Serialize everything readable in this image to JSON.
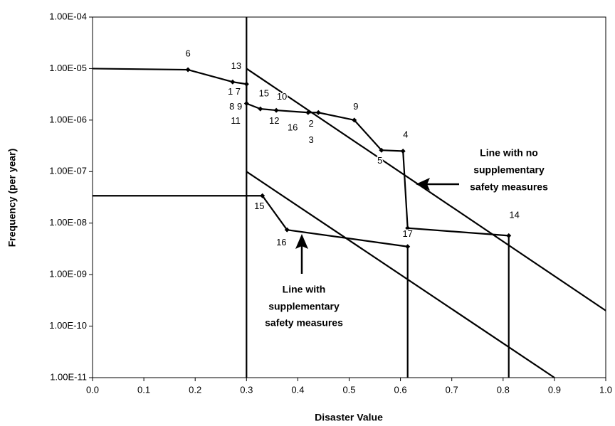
{
  "chart_data": {
    "type": "line",
    "log_y": true,
    "xlabel": "Disaster Value",
    "ylabel": "Frequency (per year)",
    "xlim": [
      0,
      1
    ],
    "ylim": [
      1e-11,
      0.0001
    ],
    "xticks": [
      {
        "value": 0,
        "label": "0.0"
      },
      0.1,
      0.2,
      0.3,
      0.4,
      0.5,
      0.6,
      0.7,
      0.8,
      0.9,
      {
        "value": 1,
        "label": "1.0"
      }
    ],
    "yticks": [
      {
        "value": 0.0001,
        "label": "1.00E-04"
      },
      {
        "value": 1e-05,
        "label": "1.00E-05"
      },
      {
        "value": 1e-06,
        "label": "1.00E-06"
      },
      {
        "value": 1e-07,
        "label": "1.00E-07"
      },
      {
        "value": 1e-08,
        "label": "1.00E-08"
      },
      {
        "value": 1e-09,
        "label": "1.00E-09"
      },
      {
        "value": 1e-10,
        "label": "1.00E-10"
      },
      {
        "value": 1e-11,
        "label": "1.00E-11"
      }
    ],
    "series": [
      {
        "color": "#000000",
        "markers": true,
        "x": [
          0,
          0.186,
          0.273,
          0.3,
          0.3,
          0.327,
          0.358,
          0.42,
          0.44,
          0.51,
          0.563,
          0.605,
          0.614,
          0.811
        ],
        "values": [
          1e-05,
          9.5e-06,
          5.5e-06,
          5e-06,
          2.1e-06,
          1.65e-06,
          1.55e-06,
          1.4e-06,
          1.4e-06,
          1e-06,
          2.6e-07,
          2.5e-07,
          8e-09,
          5.7e-09
        ]
      },
      {
        "color": "#000000",
        "markers": true,
        "x": [
          0,
          0.331,
          0.379,
          0.614
        ],
        "values": [
          3.4e-08,
          3.4e-08,
          7.4e-09,
          3.5e-09
        ]
      },
      {
        "color": "#000000",
        "x": [
          0.3,
          1
        ],
        "values": [
          1e-05,
          2e-10
        ]
      },
      {
        "color": "#000000",
        "x": [
          0.3,
          0.9
        ],
        "values": [
          1e-07,
          1e-11
        ]
      },
      {
        "color": "#000000",
        "x": [
          0.3,
          0.3
        ],
        "values": [
          0.0001,
          1e-11
        ]
      },
      {
        "color": "#000000",
        "x": [
          0.614,
          0.614
        ],
        "values": [
          3.5e-09,
          1e-11
        ]
      },
      {
        "color": "#000000",
        "x": [
          0.811,
          0.811
        ],
        "values": [
          5.7e-09,
          1e-11
        ]
      }
    ],
    "point_labels": [
      {
        "text": "6",
        "x": 0.186,
        "y": 1.9e-05
      },
      {
        "text": "13",
        "x": 0.28,
        "y": 1.1e-05
      },
      {
        "text": "1 7",
        "x": 0.276,
        "y": 3.5e-06
      },
      {
        "text": "15",
        "x": 0.334,
        "y": 3.2e-06
      },
      {
        "text": "10",
        "x": 0.369,
        "y": 2.8e-06
      },
      {
        "text": "8 9",
        "x": 0.279,
        "y": 1.8e-06
      },
      {
        "text": "11",
        "x": 0.279,
        "y": 9.5e-07
      },
      {
        "text": "12",
        "x": 0.354,
        "y": 9.5e-07
      },
      {
        "text": "16",
        "x": 0.39,
        "y": 7e-07
      },
      {
        "text": "2",
        "x": 0.426,
        "y": 8.3e-07
      },
      {
        "text": "3",
        "x": 0.426,
        "y": 4e-07
      },
      {
        "text": "9",
        "x": 0.513,
        "y": 1.8e-06
      },
      {
        "text": "4",
        "x": 0.61,
        "y": 5.1e-07
      },
      {
        "text": "5",
        "x": 0.56,
        "y": 1.6e-07
      },
      {
        "text": "15",
        "x": 0.325,
        "y": 2.1e-08
      },
      {
        "text": "16",
        "x": 0.368,
        "y": 4.1e-09
      },
      {
        "text": "17",
        "x": 0.614,
        "y": 6e-09
      },
      {
        "text": "14",
        "x": 0.822,
        "y": 1.4e-08
      }
    ],
    "annotations": [
      {
        "lines": [
          "Line with no",
          "supplementary",
          "safety measures"
        ]
      },
      {
        "lines": [
          "Line with",
          "supplementary",
          "safety measures"
        ]
      }
    ]
  }
}
